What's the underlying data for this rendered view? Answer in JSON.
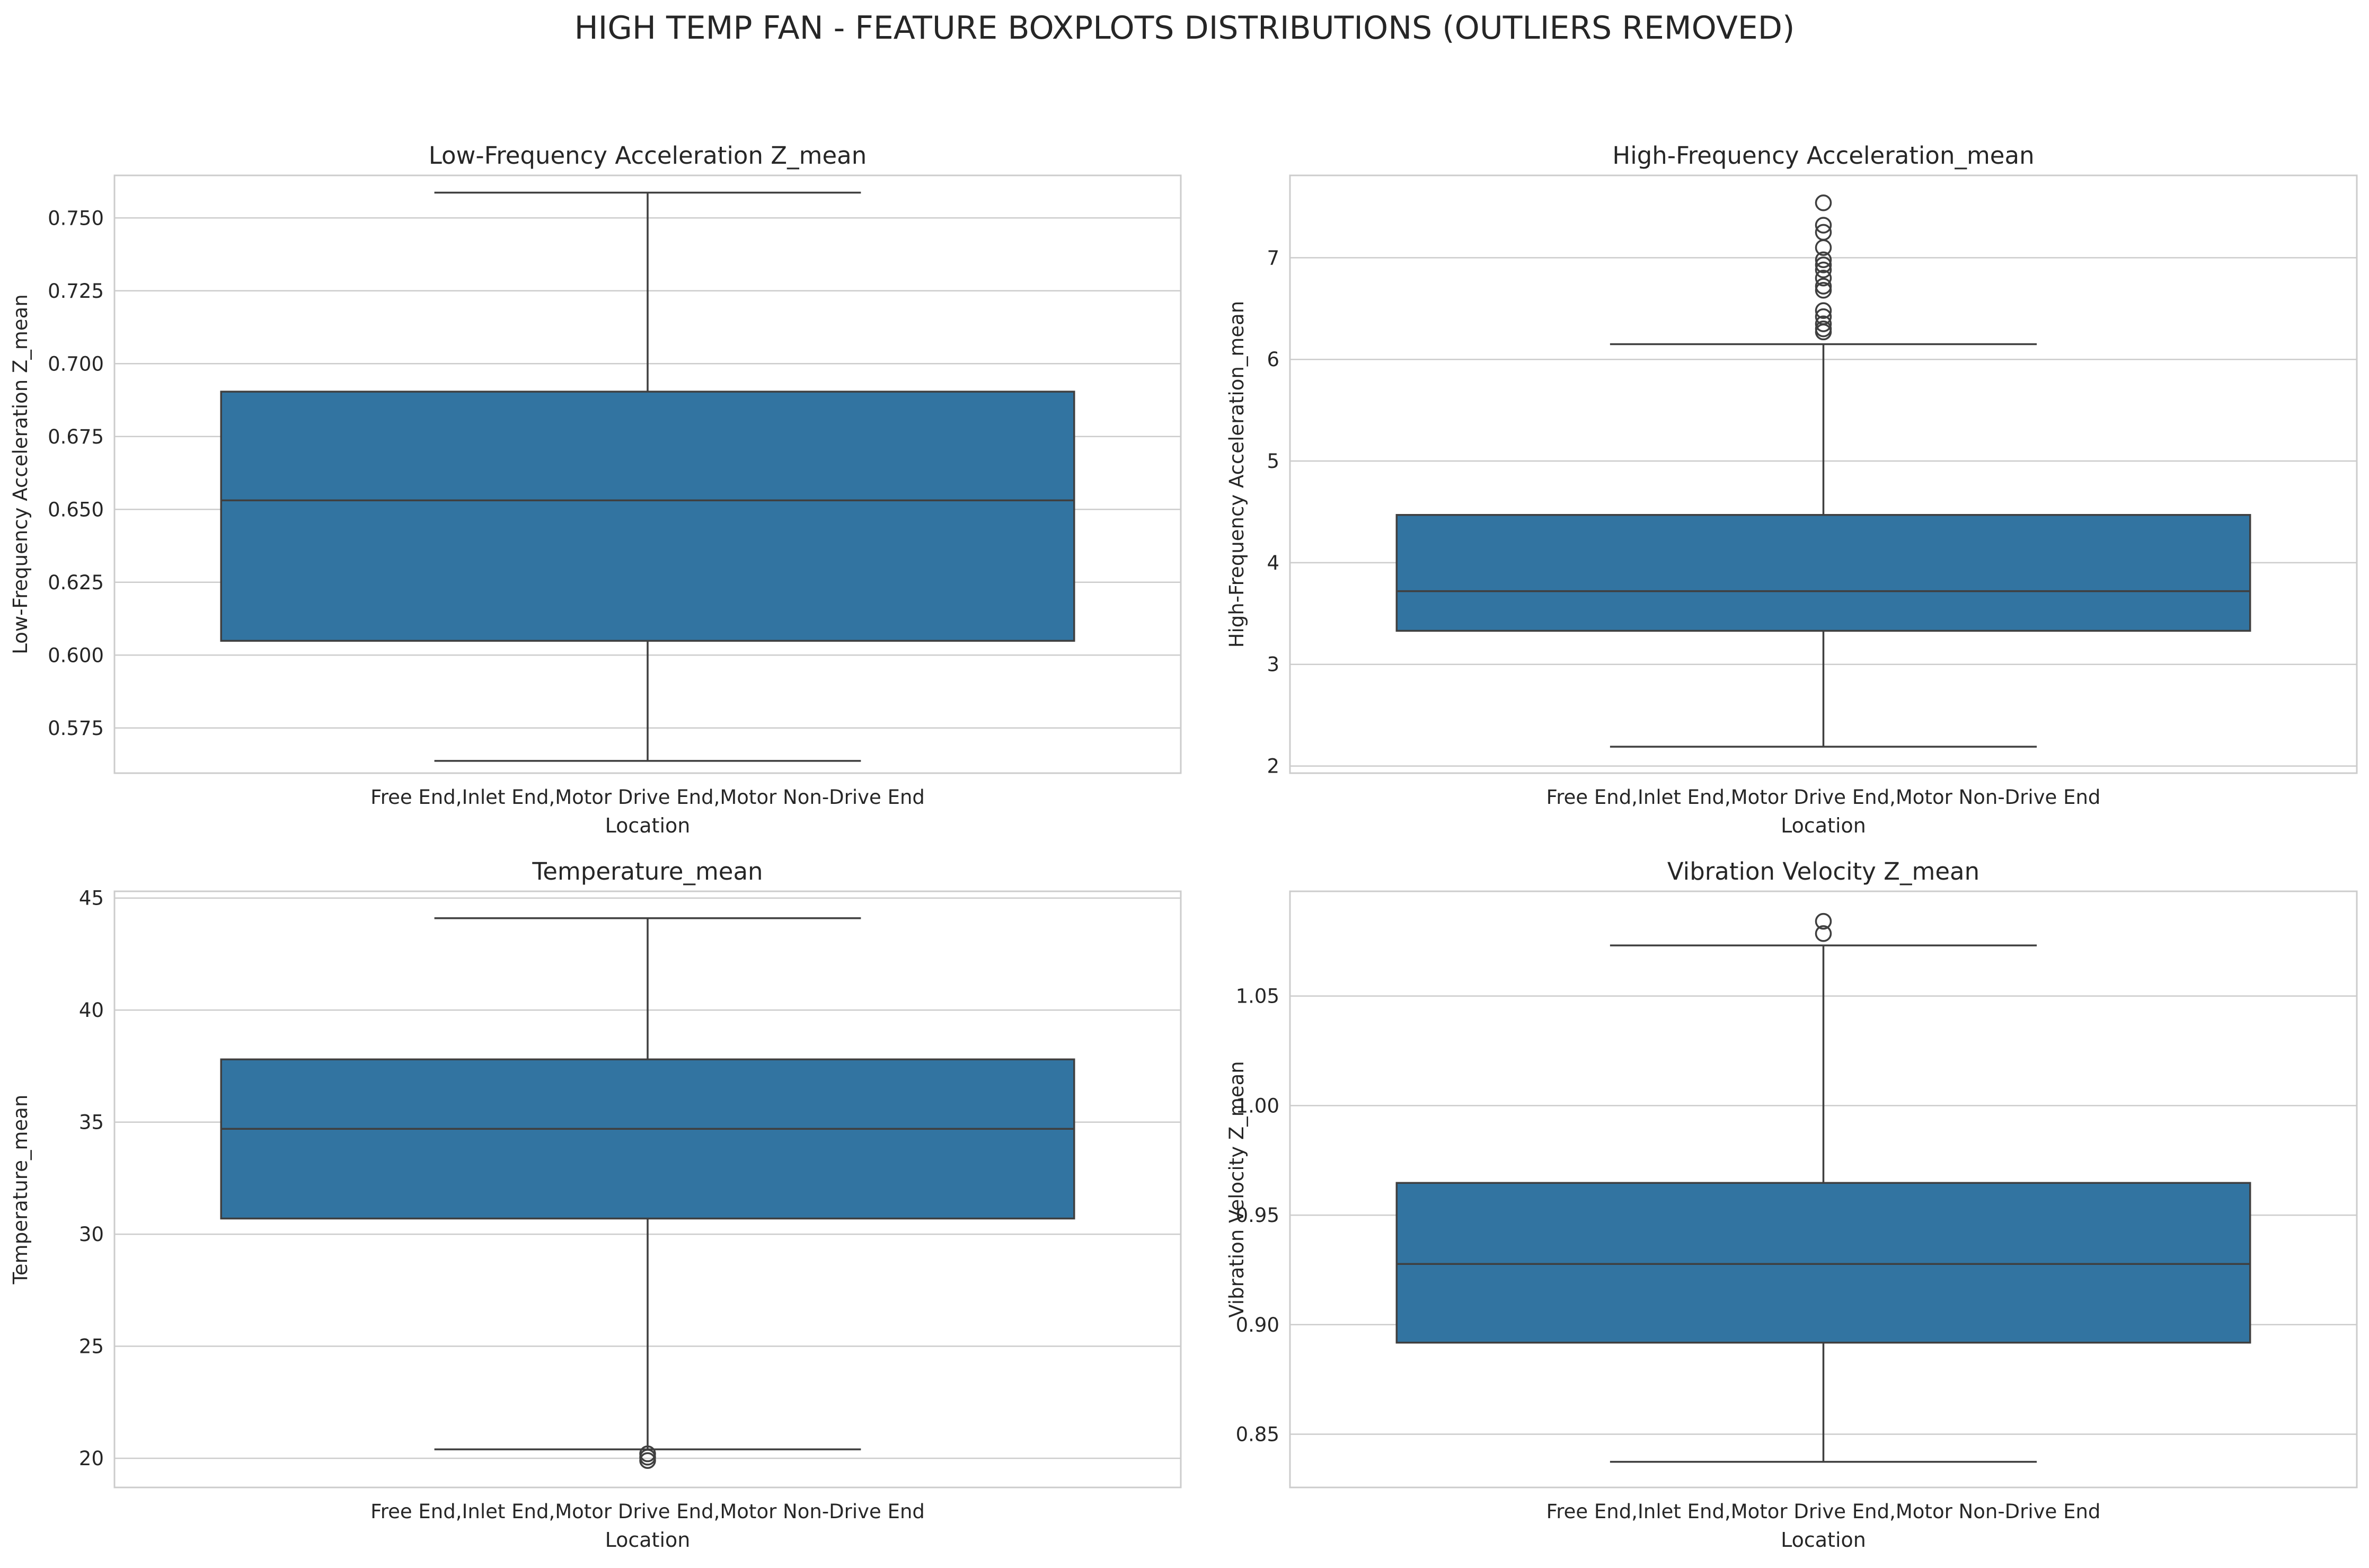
{
  "suptitle": "HIGH TEMP FAN - FEATURE BOXPLOTS DISTRIBUTIONS (OUTLIERS REMOVED)",
  "colors": {
    "box_fill": "#3274a1",
    "line": "#3f3f3f",
    "grid": "#cccccc",
    "frame": "#cccccc"
  },
  "chart_data": [
    {
      "type": "boxplot",
      "title": "Low-Frequency Acceleration Z_mean",
      "xlabel": "Location",
      "ylabel": "Low-Frequency Acceleration Z_mean",
      "categories": [
        "Free End,Inlet End,Motor Drive End,Motor Non-Drive End"
      ],
      "ylim": [
        0.5595,
        0.7646
      ],
      "yticks": [
        0.575,
        0.6,
        0.625,
        0.65,
        0.675,
        0.7,
        0.725,
        0.75
      ],
      "ytick_labels": [
        "0.575",
        "0.600",
        "0.625",
        "0.650",
        "0.675",
        "0.700",
        "0.725",
        "0.750"
      ],
      "whisker_low": 0.5637,
      "q1": 0.6049,
      "median": 0.6531,
      "q3": 0.6904,
      "whisker_high": 0.7587,
      "outliers": [],
      "grid": true
    },
    {
      "type": "boxplot",
      "title": "High-Frequency Acceleration_mean",
      "xlabel": "Location",
      "ylabel": "High-Frequency Acceleration_mean",
      "categories": [
        "Free End,Inlet End,Motor Drive End,Motor Non-Drive End"
      ],
      "ylim": [
        1.93,
        7.81
      ],
      "yticks": [
        2,
        3,
        4,
        5,
        6,
        7
      ],
      "ytick_labels": [
        "2",
        "3",
        "4",
        "5",
        "6",
        "7"
      ],
      "whisker_low": 2.19,
      "q1": 3.33,
      "median": 3.72,
      "q3": 4.47,
      "whisker_high": 6.15,
      "outliers": [
        6.27,
        6.3,
        6.35,
        6.42,
        6.48,
        6.68,
        6.72,
        6.8,
        6.88,
        6.93,
        6.98,
        7.1,
        7.25,
        7.32,
        7.54
      ],
      "grid": true
    },
    {
      "type": "boxplot",
      "title": "Temperature_mean",
      "xlabel": "Location",
      "ylabel": "Temperature_mean",
      "categories": [
        "Free End,Inlet End,Motor Drive End,Motor Non-Drive End"
      ],
      "ylim": [
        18.7,
        45.3
      ],
      "yticks": [
        20,
        25,
        30,
        35,
        40,
        45
      ],
      "ytick_labels": [
        "20",
        "25",
        "30",
        "35",
        "40",
        "45"
      ],
      "whisker_low": 20.4,
      "q1": 30.7,
      "median": 34.7,
      "q3": 37.8,
      "whisker_high": 44.1,
      "outliers": [
        19.9,
        20.05,
        20.2
      ],
      "grid": true
    },
    {
      "type": "boxplot",
      "title": "Vibration Velocity Z_mean",
      "xlabel": "Location",
      "ylabel": "Vibration Velocity Z_mean",
      "categories": [
        "Free End,Inlet End,Motor Drive End,Motor Non-Drive End"
      ],
      "ylim": [
        0.8257,
        1.0978
      ],
      "yticks": [
        0.85,
        0.9,
        0.95,
        1.0,
        1.05
      ],
      "ytick_labels": [
        "0.85",
        "0.90",
        "0.95",
        "1.00",
        "1.05"
      ],
      "whisker_low": 0.8374,
      "q1": 0.8918,
      "median": 0.9277,
      "q3": 0.9647,
      "whisker_high": 1.0731,
      "outliers": [
        1.0785,
        1.0841
      ],
      "grid": true
    }
  ]
}
